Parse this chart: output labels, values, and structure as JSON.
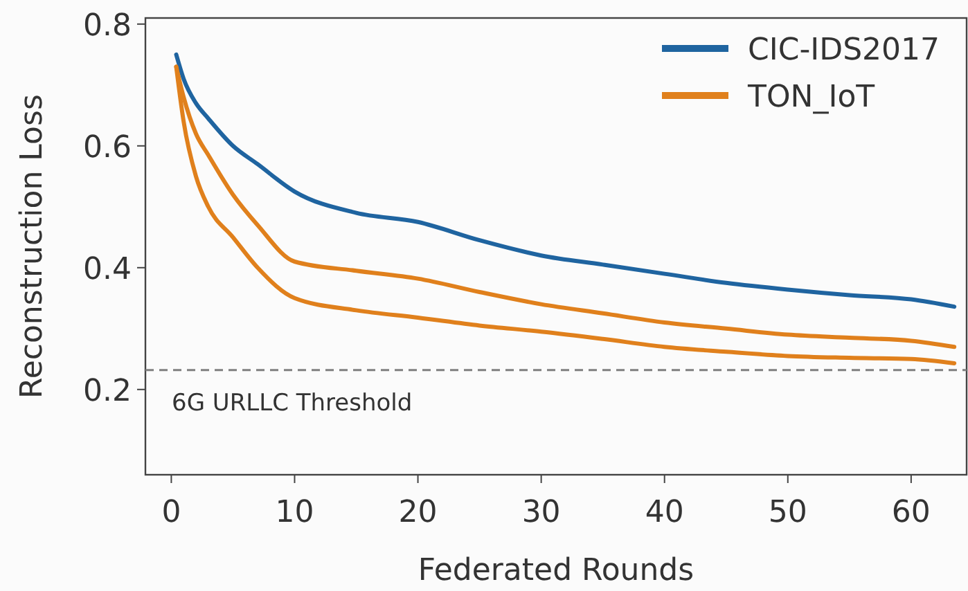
{
  "chart_data": {
    "type": "line",
    "xlabel": "Federated Rounds",
    "ylabel": "Reconstruction Loss",
    "xlim": [
      -2.1,
      64.5
    ],
    "ylim": [
      0.06,
      0.81
    ],
    "xticks": [
      0,
      10,
      20,
      30,
      40,
      50,
      60
    ],
    "yticks": [
      0.2,
      0.4,
      0.6,
      0.8
    ],
    "grid": false,
    "legend": "top right",
    "line_style": "solid",
    "marker": "none",
    "x": [
      0.4,
      1,
      2,
      3,
      5,
      7,
      10,
      15,
      20,
      25,
      30,
      35,
      40,
      45,
      50,
      55,
      60,
      63.5
    ],
    "series": [
      {
        "name": "CIC-IDS2017",
        "color": "#1f64a0",
        "values": [
          0.75,
          0.71,
          0.67,
          0.645,
          0.6,
          0.57,
          0.525,
          0.49,
          0.475,
          0.445,
          0.42,
          0.405,
          0.39,
          0.375,
          0.364,
          0.355,
          0.348,
          0.336
        ]
      },
      {
        "name": "TON_IoT",
        "color": "#e0801c",
        "values": [
          0.73,
          0.68,
          0.62,
          0.585,
          0.52,
          0.47,
          0.41,
          0.395,
          0.382,
          0.36,
          0.34,
          0.325,
          0.31,
          0.3,
          0.29,
          0.285,
          0.28,
          0.27
        ]
      },
      {
        "color": "#e0801c",
        "values": [
          0.73,
          0.64,
          0.55,
          0.5,
          0.45,
          0.4,
          0.35,
          0.33,
          0.318,
          0.305,
          0.295,
          0.283,
          0.27,
          0.262,
          0.255,
          0.252,
          0.25,
          0.243
        ]
      }
    ],
    "ref_lines": [
      {
        "axis": "y",
        "value": 0.232,
        "label": "6G URLLC Threshold",
        "color": "#808080",
        "line_style": "dashed"
      }
    ]
  }
}
